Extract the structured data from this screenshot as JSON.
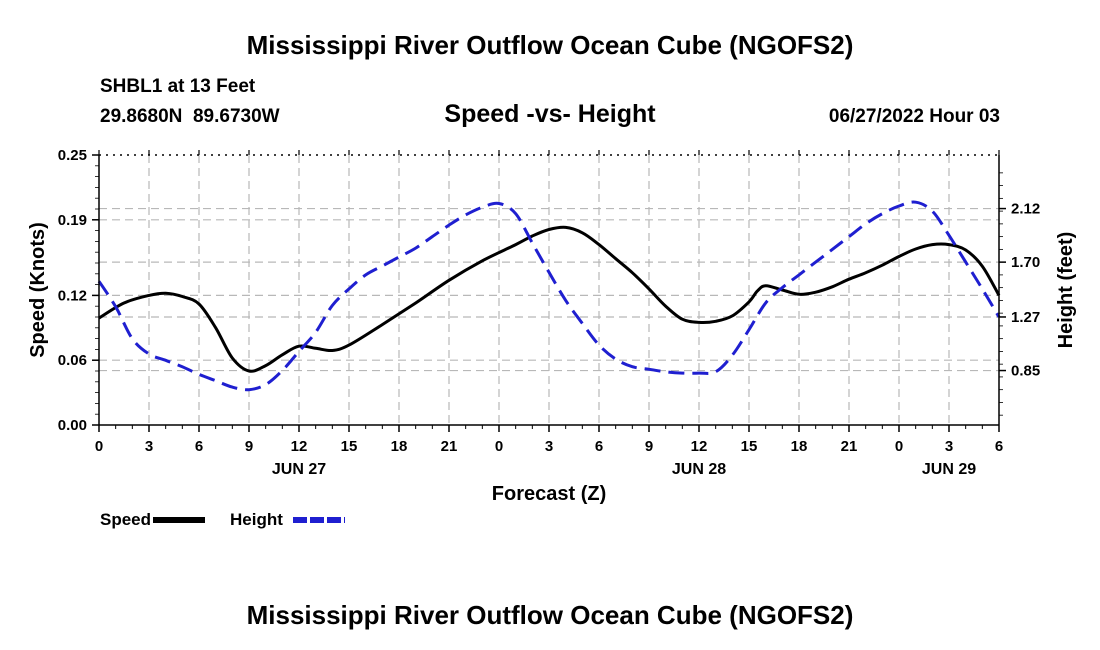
{
  "header": {
    "title": "Mississippi River Outflow Ocean Cube (NGOFS2)",
    "station": "SHBL1 at 13 Feet",
    "coords": "29.8680N  89.6730W",
    "datetime": "06/27/2022 Hour 03",
    "footer_title": "Mississippi River Outflow Ocean Cube (NGOFS2)"
  },
  "chart_data": {
    "type": "line",
    "title": "Speed -vs- Height",
    "xlabel": "Forecast (Z)",
    "ylabel": "Speed (Knots)",
    "y2label": "Height (feet)",
    "x_unit": "hours from 06/27 00Z",
    "xlim": [
      0,
      54
    ],
    "ylim": [
      0,
      0.25
    ],
    "y2lim": [
      0.423,
      2.54
    ],
    "x_ticks": [
      0,
      3,
      6,
      9,
      12,
      15,
      18,
      21,
      24,
      27,
      30,
      33,
      36,
      39,
      42,
      45,
      48,
      51,
      54
    ],
    "x_tick_labels": [
      "0",
      "3",
      "6",
      "9",
      "12",
      "15",
      "18",
      "21",
      "0",
      "3",
      "6",
      "9",
      "12",
      "15",
      "18",
      "21",
      "0",
      "3",
      "6"
    ],
    "date_labels": [
      {
        "x": 12,
        "label": "JUN 27"
      },
      {
        "x": 36,
        "label": "JUN 28"
      },
      {
        "x": 51,
        "label": "JUN 29"
      }
    ],
    "y_ticks": [
      0,
      0.06,
      0.12,
      0.19,
      0.25
    ],
    "y_tick_labels": [
      "0.00",
      "0.06",
      "0.12",
      "0.19",
      "0.25"
    ],
    "y2_ticks": [
      0.85,
      1.27,
      1.7,
      2.12
    ],
    "y2_tick_labels": [
      "0.85",
      "1.27",
      "1.70",
      "2.12"
    ],
    "series": [
      {
        "name": "Speed",
        "axis": "left",
        "color": "#000000",
        "dash": "solid",
        "x": [
          0,
          1.5,
          3,
          4,
          5,
          6,
          7,
          8,
          9,
          10,
          11,
          12,
          13,
          14,
          15,
          17,
          19,
          21,
          23,
          25,
          26,
          27,
          28,
          29,
          30,
          31,
          32,
          33,
          34,
          35,
          36,
          37,
          38,
          39,
          39.5,
          40,
          41,
          42,
          43,
          44,
          45,
          46,
          47,
          48,
          49,
          50,
          51,
          52,
          53,
          54
        ],
        "values": [
          0.099,
          0.113,
          0.12,
          0.122,
          0.119,
          0.112,
          0.09,
          0.062,
          0.05,
          0.055,
          0.065,
          0.073,
          0.071,
          0.069,
          0.074,
          0.093,
          0.113,
          0.134,
          0.152,
          0.167,
          0.175,
          0.181,
          0.183,
          0.178,
          0.167,
          0.154,
          0.141,
          0.126,
          0.11,
          0.098,
          0.095,
          0.096,
          0.101,
          0.114,
          0.124,
          0.129,
          0.125,
          0.121,
          0.123,
          0.128,
          0.135,
          0.141,
          0.148,
          0.156,
          0.163,
          0.167,
          0.167,
          0.162,
          0.147,
          0.12
        ]
      },
      {
        "name": "Height",
        "axis": "right",
        "color": "#1f1fd0",
        "dash": "dashed",
        "x": [
          0,
          1,
          2,
          3,
          4,
          5,
          6,
          7,
          8,
          9,
          10,
          11,
          12,
          13,
          14,
          15,
          16,
          17,
          18,
          19,
          20,
          21,
          22,
          23,
          24,
          25,
          26,
          27,
          28,
          29,
          30,
          31,
          32,
          33,
          34,
          35,
          36,
          37,
          38,
          39,
          40,
          41,
          42,
          43,
          44,
          45,
          46,
          47,
          48,
          49,
          50,
          51,
          52,
          53,
          54
        ],
        "values": [
          1.55,
          1.35,
          1.1,
          0.98,
          0.93,
          0.88,
          0.82,
          0.77,
          0.72,
          0.7,
          0.74,
          0.85,
          1.0,
          1.15,
          1.36,
          1.49,
          1.6,
          1.67,
          1.74,
          1.81,
          1.9,
          1.99,
          2.07,
          2.13,
          2.16,
          2.08,
          1.85,
          1.62,
          1.4,
          1.22,
          1.05,
          0.94,
          0.88,
          0.86,
          0.84,
          0.83,
          0.83,
          0.84,
          0.97,
          1.17,
          1.38,
          1.5,
          1.6,
          1.7,
          1.8,
          1.9,
          2.0,
          2.08,
          2.14,
          2.17,
          2.1,
          1.91,
          1.7,
          1.49,
          1.27
        ]
      }
    ],
    "legend": [
      {
        "label": "Speed",
        "color": "#000000",
        "dash": "solid"
      },
      {
        "label": "Height",
        "color": "#1f1fd0",
        "dash": "dashed"
      }
    ]
  }
}
